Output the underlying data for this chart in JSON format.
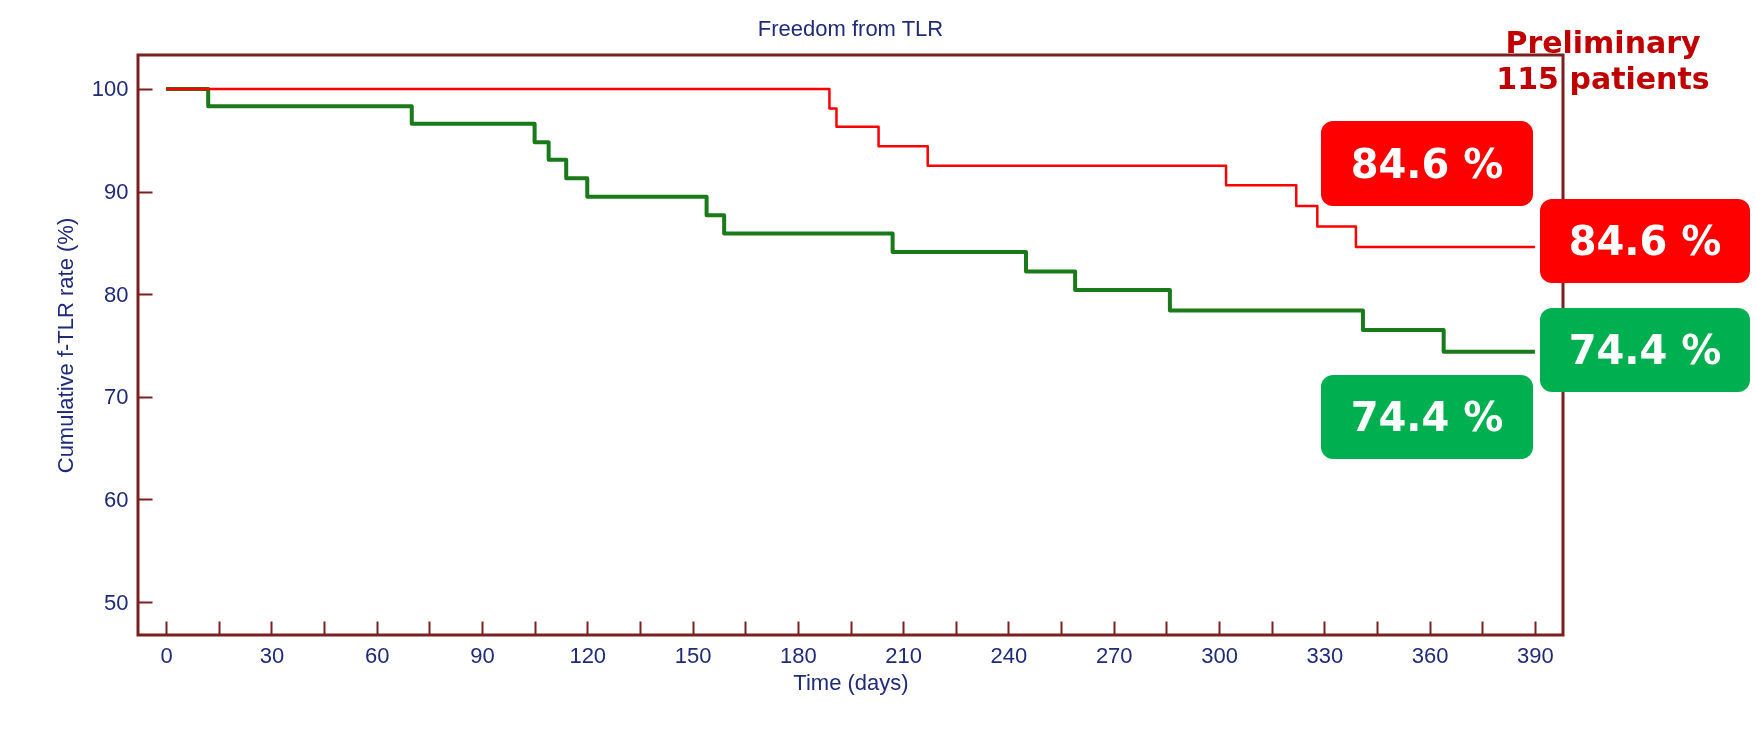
{
  "chart_data": {
    "type": "step",
    "title": "Freedom from TLR",
    "xlabel": "Time (days)",
    "ylabel": "Cumulative f-TLR rate (%)",
    "series": [
      {
        "color": "#ff0000",
        "x": [
          0,
          189,
          191,
          203,
          217,
          302,
          322,
          328,
          339,
          390
        ],
        "values": [
          100,
          98.1,
          96.3,
          94.4,
          92.5,
          90.6,
          88.6,
          86.6,
          84.6,
          84.6
        ]
      },
      {
        "color": "#1a7a1a",
        "x": [
          0,
          12,
          70,
          105,
          109,
          114,
          120,
          154,
          159,
          207,
          245,
          259,
          286,
          341,
          364,
          390
        ],
        "values": [
          100,
          98.3,
          96.6,
          94.8,
          93.1,
          91.3,
          89.5,
          87.7,
          85.9,
          84.1,
          82.2,
          80.4,
          78.4,
          76.5,
          74.4,
          74.4
        ]
      }
    ],
    "xlim": [
      -8,
      398
    ],
    "ylim": [
      46.8,
      103.3
    ],
    "xticks": [
      0,
      {
        "value": 15,
        "label": null
      },
      30,
      {
        "value": 45,
        "label": null
      },
      60,
      {
        "value": 75,
        "label": null
      },
      90,
      {
        "value": 105,
        "label": null
      },
      120,
      {
        "value": 135,
        "label": null
      },
      150,
      {
        "value": 165,
        "label": null
      },
      180,
      {
        "value": 195,
        "label": null
      },
      210,
      {
        "value": 225,
        "label": null
      },
      240,
      {
        "value": 255,
        "label": null
      },
      270,
      {
        "value": 285,
        "label": null
      },
      300,
      {
        "value": 315,
        "label": null
      },
      330,
      {
        "value": 345,
        "label": null
      },
      360,
      {
        "value": 375,
        "label": null
      },
      390
    ],
    "yticks": [
      50,
      60,
      70,
      80,
      90,
      100
    ],
    "grid": false,
    "legend": false,
    "annotations": [
      "84.6 %",
      "84.6 %",
      "74.4 %",
      "74.4 %",
      "Preliminary\n115 patients"
    ]
  }
}
